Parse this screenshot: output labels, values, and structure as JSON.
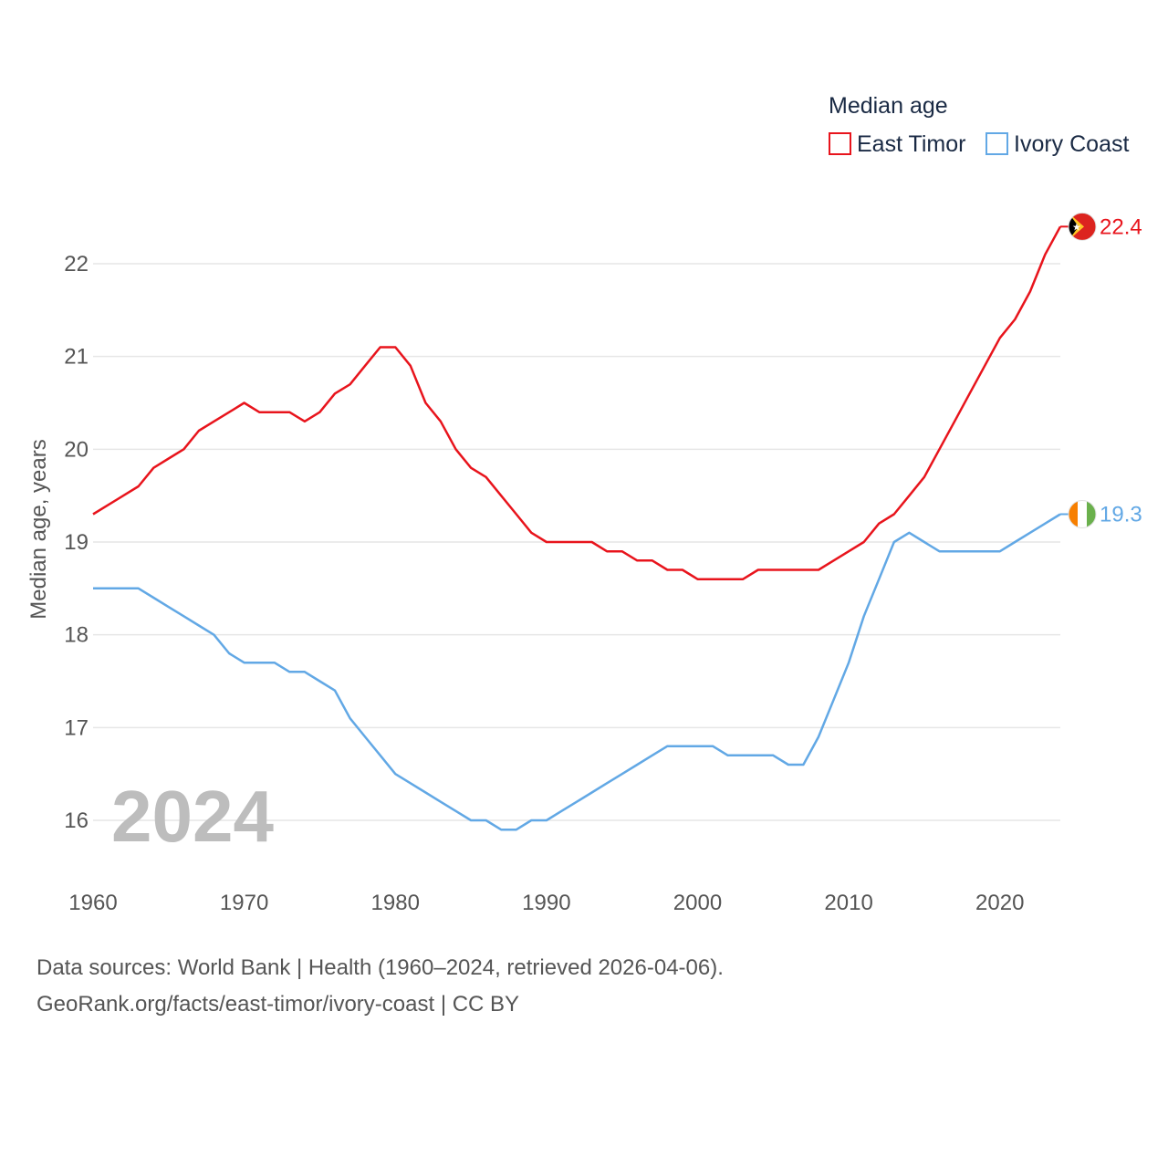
{
  "chart_data": {
    "type": "line",
    "title": "Median age",
    "ylabel": "Median age, years",
    "xlabel": "",
    "xlim": [
      1960,
      2024
    ],
    "ylim": [
      15.5,
      22.6
    ],
    "grid": true,
    "legend_position": "top-right",
    "year_label": "2024",
    "x_ticks": [
      1960,
      1970,
      1980,
      1990,
      2000,
      2010,
      2020
    ],
    "x_tick_labels": [
      "1960",
      "1970",
      "1980",
      "1990",
      "2000",
      "2010",
      "2020"
    ],
    "y_ticks": [
      16,
      17,
      18,
      19,
      20,
      21,
      22
    ],
    "y_tick_labels": [
      "16",
      "17",
      "18",
      "19",
      "20",
      "21",
      "22"
    ],
    "x": [
      1960,
      1961,
      1962,
      1963,
      1964,
      1965,
      1966,
      1967,
      1968,
      1969,
      1970,
      1971,
      1972,
      1973,
      1974,
      1975,
      1976,
      1977,
      1978,
      1979,
      1980,
      1981,
      1982,
      1983,
      1984,
      1985,
      1986,
      1987,
      1988,
      1989,
      1990,
      1991,
      1992,
      1993,
      1994,
      1995,
      1996,
      1997,
      1998,
      1999,
      2000,
      2001,
      2002,
      2003,
      2004,
      2005,
      2006,
      2007,
      2008,
      2009,
      2010,
      2011,
      2012,
      2013,
      2014,
      2015,
      2016,
      2017,
      2018,
      2019,
      2020,
      2021,
      2022,
      2023,
      2024
    ],
    "series": [
      {
        "name": "East Timor",
        "color": "#e8141c",
        "end_label": "22.4",
        "flag": "east-timor-flag",
        "values": [
          19.3,
          19.4,
          19.5,
          19.6,
          19.8,
          19.9,
          20.0,
          20.2,
          20.3,
          20.4,
          20.5,
          20.4,
          20.4,
          20.4,
          20.3,
          20.4,
          20.6,
          20.7,
          20.9,
          21.1,
          21.1,
          20.9,
          20.5,
          20.3,
          20.0,
          19.8,
          19.7,
          19.5,
          19.3,
          19.1,
          19.0,
          19.0,
          19.0,
          19.0,
          18.9,
          18.9,
          18.8,
          18.8,
          18.7,
          18.7,
          18.6,
          18.6,
          18.6,
          18.6,
          18.7,
          18.7,
          18.7,
          18.7,
          18.7,
          18.8,
          18.9,
          19.0,
          19.2,
          19.3,
          19.5,
          19.7,
          20.0,
          20.3,
          20.6,
          20.9,
          21.2,
          21.4,
          21.7,
          22.1,
          22.4
        ]
      },
      {
        "name": "Ivory Coast",
        "color": "#62a8e5",
        "end_label": "19.3",
        "flag": "ivory-coast-flag",
        "values": [
          18.5,
          18.5,
          18.5,
          18.5,
          18.4,
          18.3,
          18.2,
          18.1,
          18.0,
          17.8,
          17.7,
          17.7,
          17.7,
          17.6,
          17.6,
          17.5,
          17.4,
          17.1,
          16.9,
          16.7,
          16.5,
          16.4,
          16.3,
          16.2,
          16.1,
          16.0,
          16.0,
          15.9,
          15.9,
          16.0,
          16.0,
          16.1,
          16.2,
          16.3,
          16.4,
          16.5,
          16.6,
          16.7,
          16.8,
          16.8,
          16.8,
          16.8,
          16.7,
          16.7,
          16.7,
          16.7,
          16.6,
          16.6,
          16.9,
          17.3,
          17.7,
          18.2,
          18.6,
          19.0,
          19.1,
          19.0,
          18.9,
          18.9,
          18.9,
          18.9,
          18.9,
          19.0,
          19.1,
          19.2,
          19.3
        ]
      }
    ]
  },
  "footer": {
    "line1": "Data sources: World Bank | Health (1960–2024, retrieved 2026-04-06).",
    "line2": "GeoRank.org/facts/east-timor/ivory-coast | CC BY"
  }
}
